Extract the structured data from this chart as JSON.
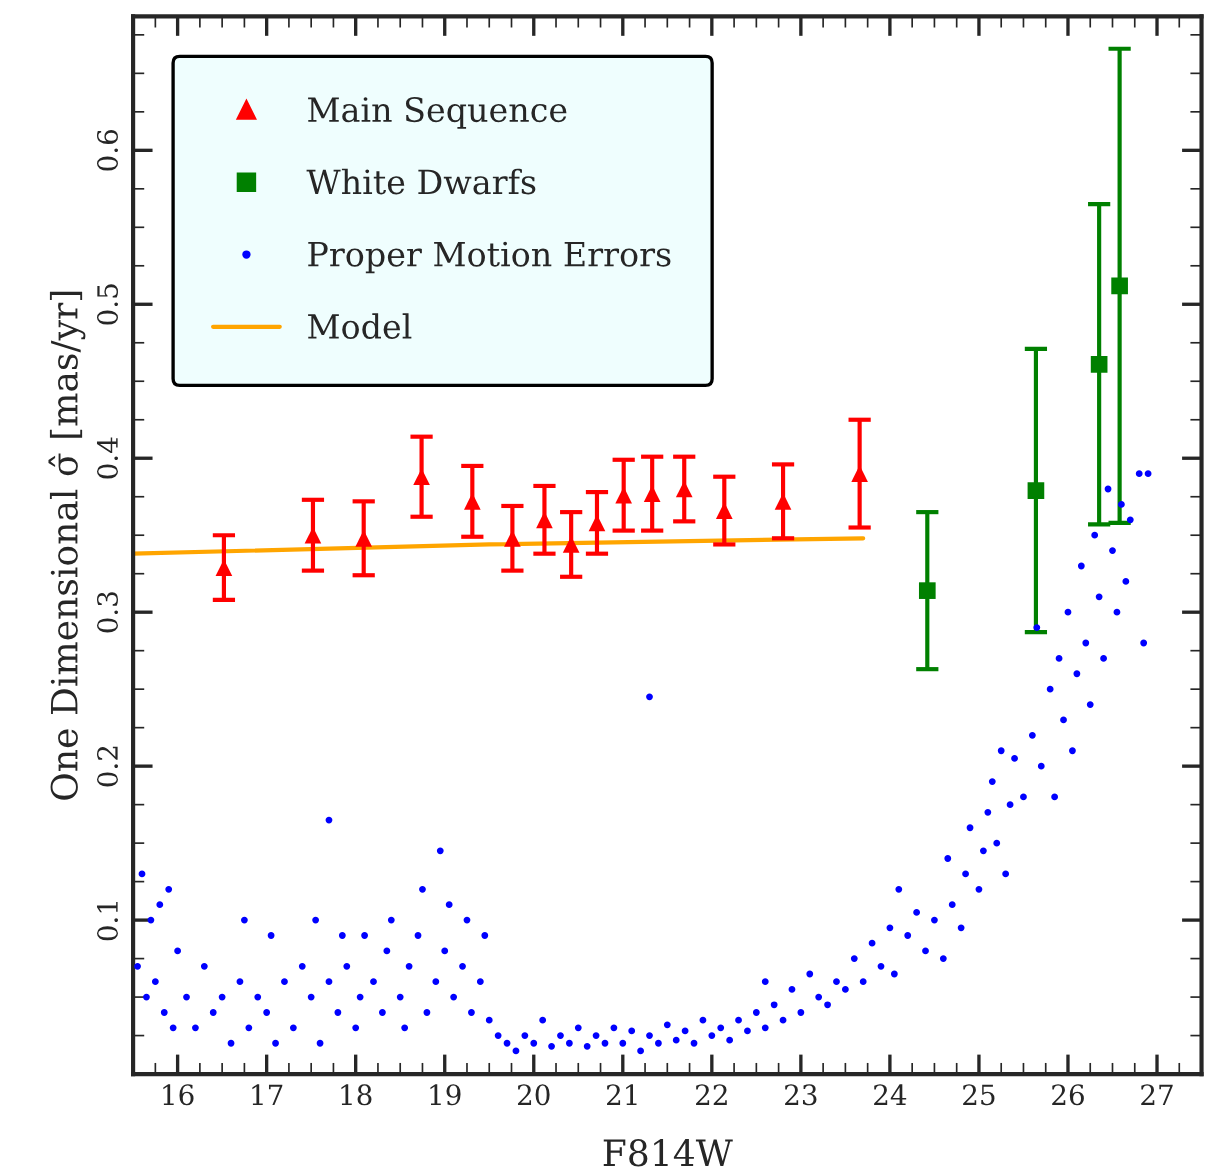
{
  "chart_data": {
    "type": "scatter",
    "xlabel": "F814W",
    "ylabel": "One Dimensional σ̂ [mas/yr]",
    "xlim": [
      15.5,
      27.5
    ],
    "ylim": [
      0,
      0.687
    ],
    "xticks": [
      16,
      17,
      18,
      19,
      20,
      21,
      22,
      23,
      24,
      25,
      26,
      27
    ],
    "yticks": [
      0.1,
      0.2,
      0.3,
      0.4,
      0.5,
      0.6
    ],
    "grid": false,
    "legend": "top left",
    "series": [
      {
        "name": "Main Sequence",
        "marker": "triangle",
        "color": "#ff0000",
        "x": [
          16.52,
          17.52,
          18.09,
          18.74,
          19.31,
          19.76,
          20.12,
          20.42,
          20.71,
          21.01,
          21.33,
          21.69,
          22.14,
          22.8,
          23.66
        ],
        "values": [
          0.329,
          0.35,
          0.348,
          0.388,
          0.372,
          0.348,
          0.36,
          0.344,
          0.358,
          0.376,
          0.377,
          0.38,
          0.366,
          0.372,
          0.39
        ],
        "errors": [
          0.021,
          0.023,
          0.024,
          0.026,
          0.023,
          0.021,
          0.022,
          0.021,
          0.02,
          0.023,
          0.024,
          0.021,
          0.022,
          0.024,
          0.035
        ]
      },
      {
        "name": "White Dwarfs",
        "marker": "square",
        "color": "#008000",
        "x": [
          24.42,
          25.64,
          26.35,
          26.58
        ],
        "values": [
          0.314,
          0.379,
          0.461,
          0.512
        ],
        "errors": [
          0.051,
          0.092,
          0.104,
          0.154
        ]
      },
      {
        "name": "Proper Motion Errors",
        "marker": "circle",
        "color": "#0000ff",
        "x": [
          15.55,
          15.6,
          15.65,
          15.7,
          15.75,
          15.8,
          15.85,
          15.9,
          15.95,
          16.0,
          16.1,
          16.2,
          16.3,
          16.4,
          16.5,
          16.6,
          16.7,
          16.75,
          16.8,
          16.9,
          17.0,
          17.05,
          17.1,
          17.2,
          17.3,
          17.4,
          17.5,
          17.55,
          17.6,
          17.7,
          17.7,
          17.8,
          17.85,
          17.9,
          18.0,
          18.05,
          18.1,
          18.2,
          18.3,
          18.35,
          18.4,
          18.5,
          18.55,
          18.6,
          18.7,
          18.75,
          18.8,
          18.9,
          18.95,
          19.0,
          19.05,
          19.1,
          19.2,
          19.25,
          19.3,
          19.4,
          19.45,
          19.5,
          19.6,
          19.7,
          19.8,
          19.9,
          20.0,
          20.1,
          20.2,
          20.3,
          20.4,
          20.5,
          20.6,
          20.7,
          20.8,
          20.9,
          21.0,
          21.1,
          21.2,
          21.3,
          21.3,
          21.4,
          21.5,
          21.6,
          21.7,
          21.8,
          21.9,
          22.0,
          22.1,
          22.2,
          22.3,
          22.4,
          22.5,
          22.6,
          22.6,
          22.7,
          22.8,
          22.9,
          23.0,
          23.1,
          23.2,
          23.3,
          23.4,
          23.5,
          23.6,
          23.7,
          23.8,
          23.9,
          24.0,
          24.05,
          24.1,
          24.2,
          24.3,
          24.4,
          24.5,
          24.6,
          24.65,
          24.7,
          24.8,
          24.85,
          24.9,
          25.0,
          25.05,
          25.1,
          25.15,
          25.2,
          25.25,
          25.3,
          25.35,
          25.4,
          25.5,
          25.6,
          25.65,
          25.7,
          25.8,
          25.85,
          25.9,
          25.95,
          26.0,
          26.05,
          26.1,
          26.15,
          26.2,
          26.25,
          26.3,
          26.35,
          26.4,
          26.45,
          26.5,
          26.55,
          26.6,
          26.65,
          26.7,
          26.8,
          26.9,
          26.85
        ],
        "values": [
          0.07,
          0.13,
          0.05,
          0.1,
          0.06,
          0.11,
          0.04,
          0.12,
          0.03,
          0.08,
          0.05,
          0.03,
          0.07,
          0.04,
          0.05,
          0.02,
          0.06,
          0.1,
          0.03,
          0.05,
          0.04,
          0.09,
          0.02,
          0.06,
          0.03,
          0.07,
          0.05,
          0.1,
          0.02,
          0.165,
          0.06,
          0.04,
          0.09,
          0.07,
          0.03,
          0.05,
          0.09,
          0.06,
          0.04,
          0.08,
          0.1,
          0.05,
          0.03,
          0.07,
          0.09,
          0.12,
          0.04,
          0.06,
          0.145,
          0.08,
          0.11,
          0.05,
          0.07,
          0.1,
          0.04,
          0.06,
          0.09,
          0.035,
          0.025,
          0.02,
          0.015,
          0.025,
          0.02,
          0.035,
          0.018,
          0.025,
          0.02,
          0.03,
          0.018,
          0.025,
          0.02,
          0.03,
          0.02,
          0.028,
          0.015,
          0.245,
          0.025,
          0.02,
          0.032,
          0.022,
          0.028,
          0.02,
          0.035,
          0.025,
          0.03,
          0.022,
          0.035,
          0.028,
          0.04,
          0.03,
          0.06,
          0.045,
          0.035,
          0.055,
          0.04,
          0.065,
          0.05,
          0.045,
          0.06,
          0.055,
          0.075,
          0.06,
          0.085,
          0.07,
          0.095,
          0.065,
          0.12,
          0.09,
          0.105,
          0.08,
          0.1,
          0.075,
          0.14,
          0.11,
          0.095,
          0.13,
          0.16,
          0.12,
          0.145,
          0.17,
          0.19,
          0.15,
          0.21,
          0.13,
          0.175,
          0.205,
          0.18,
          0.22,
          0.29,
          0.2,
          0.25,
          0.18,
          0.27,
          0.23,
          0.3,
          0.21,
          0.26,
          0.33,
          0.28,
          0.24,
          0.35,
          0.31,
          0.27,
          0.38,
          0.34,
          0.3,
          0.37,
          0.32,
          0.36,
          0.39,
          0.39,
          0.28
        ]
      },
      {
        "name": "Model",
        "type": "line",
        "marker": "none",
        "line_style": "solid",
        "color": "#ffa500",
        "x": [
          15.5,
          19.5,
          23.7
        ],
        "values": [
          0.338,
          0.344,
          0.348
        ]
      }
    ]
  }
}
